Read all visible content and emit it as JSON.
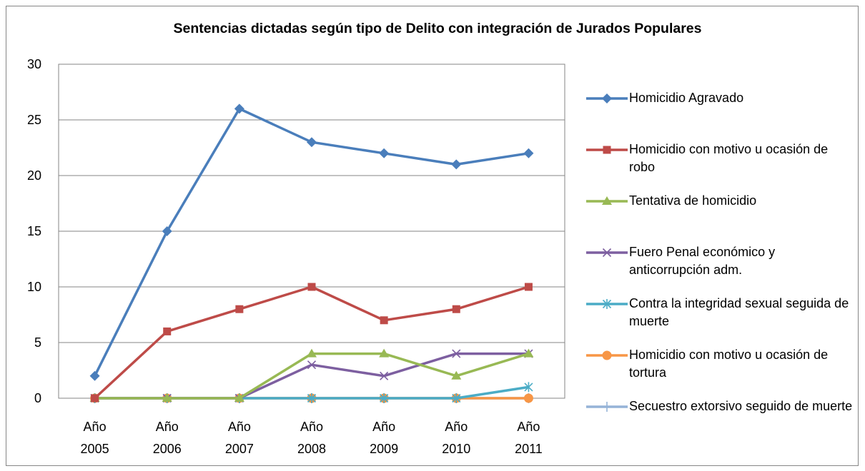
{
  "chart_data": {
    "type": "line",
    "title": "Sentencias dictadas según tipo de Delito con integración de Jurados Populares",
    "categories": [
      "Año 2005",
      "Año 2006",
      "Año 2007",
      "Año 2008",
      "Año 2009",
      "Año 2010",
      "Año 2011"
    ],
    "series": [
      {
        "name": "Homicidio Agravado",
        "color": "#4a7ebb",
        "marker": "diamond",
        "values": [
          2,
          15,
          26,
          23,
          22,
          21,
          22
        ]
      },
      {
        "name": "Homicidio con motivo u ocasión de robo",
        "color": "#be4b48",
        "marker": "square",
        "values": [
          0,
          6,
          8,
          10,
          7,
          8,
          10
        ]
      },
      {
        "name": "Tentativa de homicidio",
        "color": "#98b954",
        "marker": "triangle",
        "values": [
          0,
          0,
          0,
          4,
          4,
          2,
          4
        ]
      },
      {
        "name": "Fuero Penal económico y anticorrupción adm.",
        "color": "#7d5fa0",
        "marker": "x",
        "values": [
          0,
          0,
          0,
          3,
          2,
          4,
          4
        ]
      },
      {
        "name": "Contra la integridad sexual seguida de muerte",
        "color": "#4bacc6",
        "marker": "star",
        "values": [
          0,
          0,
          0,
          0,
          0,
          0,
          1
        ]
      },
      {
        "name": "Homicidio con motivo u ocasión de tortura",
        "color": "#f79646",
        "marker": "circle",
        "values": [
          0,
          0,
          0,
          0,
          0,
          0,
          0
        ]
      },
      {
        "name": "Secuestro extorsivo seguido de muerte",
        "color": "#95b3d7",
        "marker": "plus",
        "values": [
          0,
          0,
          0,
          0,
          0,
          0,
          0
        ]
      }
    ],
    "ylim": [
      0,
      30
    ],
    "yticks": [
      0,
      5,
      10,
      15,
      20,
      25,
      30
    ],
    "grid": true,
    "legend": "right"
  }
}
